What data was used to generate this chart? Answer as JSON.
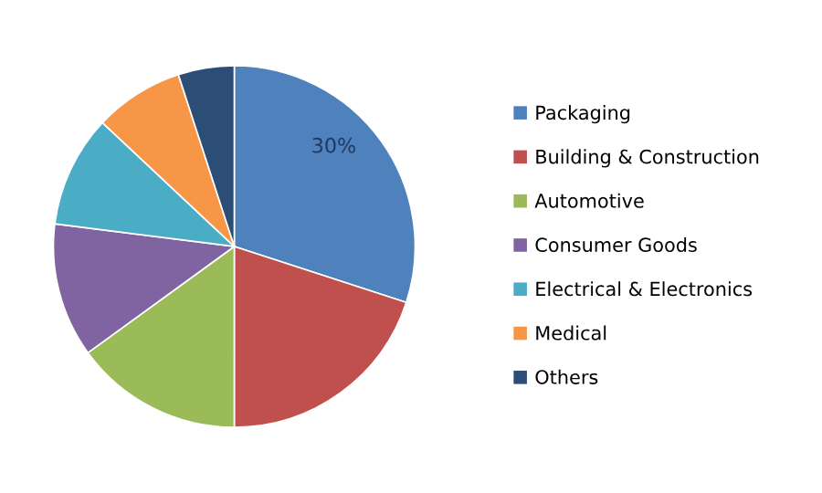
{
  "chart_data": {
    "type": "pie",
    "categories": [
      "Packaging",
      "Building & Construction",
      "Automotive",
      "Consumer Goods",
      "Electrical & Electronics",
      "Medical",
      "Others"
    ],
    "values": [
      30,
      20,
      15,
      12,
      10,
      8,
      5
    ],
    "colors": [
      "#4f81bd",
      "#c0504d",
      "#9bbb59",
      "#8064a2",
      "#4bacc6",
      "#f79646",
      "#2c4d75"
    ],
    "value_labels": [
      "30%",
      null,
      null,
      null,
      null,
      null,
      null
    ],
    "legend": "right"
  }
}
